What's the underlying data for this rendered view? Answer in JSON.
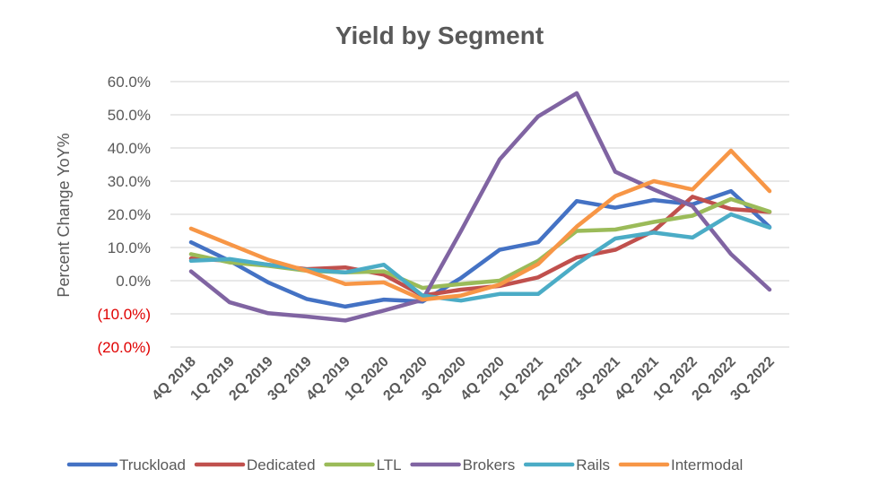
{
  "chart_data": {
    "type": "line",
    "title": "Yield by Segment",
    "xlabel": "",
    "ylabel": "Percent Change YoY%",
    "ylim": [
      -20,
      60
    ],
    "yticks": [
      60,
      50,
      40,
      30,
      20,
      10,
      0,
      -10,
      -20
    ],
    "ytick_labels": [
      "60.0%",
      "50.0%",
      "40.0%",
      "30.0%",
      "20.0%",
      "10.0%",
      "0.0%",
      "(10.0%)",
      "(20.0%)"
    ],
    "negative_tick_color": "#e00000",
    "grid": true,
    "legend_position": "bottom",
    "categories": [
      "4Q 2018",
      "1Q 2019",
      "2Q 2019",
      "3Q 2019",
      "4Q 2019",
      "1Q 2020",
      "2Q 2020",
      "3Q 2020",
      "4Q 2020",
      "1Q 2021",
      "2Q 2021",
      "3Q 2021",
      "4Q 2021",
      "1Q 2022",
      "2Q 2022",
      "3Q 2022"
    ],
    "series": [
      {
        "name": "Truckload",
        "color": "#4472c4",
        "values": [
          11.6,
          6.0,
          -0.5,
          -5.5,
          -7.8,
          -5.7,
          -6.3,
          0.8,
          9.3,
          11.6,
          24.0,
          22.0,
          24.3,
          23.0,
          27.0,
          16.2
        ]
      },
      {
        "name": "Dedicated",
        "color": "#c0504d",
        "values": [
          6.7,
          6.0,
          4.8,
          3.5,
          4.0,
          1.8,
          -4.5,
          -2.7,
          -1.6,
          1.0,
          7.0,
          9.3,
          15.0,
          25.3,
          21.6,
          20.7
        ]
      },
      {
        "name": "LTL",
        "color": "#9bbb59",
        "values": [
          8.0,
          5.5,
          4.5,
          3.0,
          2.5,
          2.8,
          -2.2,
          -1.0,
          0.0,
          6.0,
          15.0,
          15.4,
          17.7,
          19.6,
          24.6,
          20.8
        ]
      },
      {
        "name": "Brokers",
        "color": "#8064a2",
        "values": [
          2.8,
          -6.5,
          -9.8,
          -10.8,
          -12.0,
          -9.0,
          -5.8,
          15.0,
          36.5,
          49.5,
          56.5,
          32.8,
          27.5,
          22.5,
          8.0,
          -2.7
        ]
      },
      {
        "name": "Rails",
        "color": "#4bacc6",
        "values": [
          6.0,
          6.5,
          4.8,
          3.3,
          2.5,
          4.8,
          -4.5,
          -6.0,
          -4.0,
          -4.0,
          5.0,
          12.7,
          14.5,
          13.0,
          20.0,
          16.0
        ]
      },
      {
        "name": "Intermodal",
        "color": "#f79646",
        "values": [
          15.7,
          11.0,
          6.3,
          3.0,
          -1.0,
          -0.5,
          -5.7,
          -4.5,
          -1.2,
          5.0,
          16.3,
          25.5,
          30.0,
          27.5,
          39.2,
          27.0
        ]
      }
    ]
  }
}
